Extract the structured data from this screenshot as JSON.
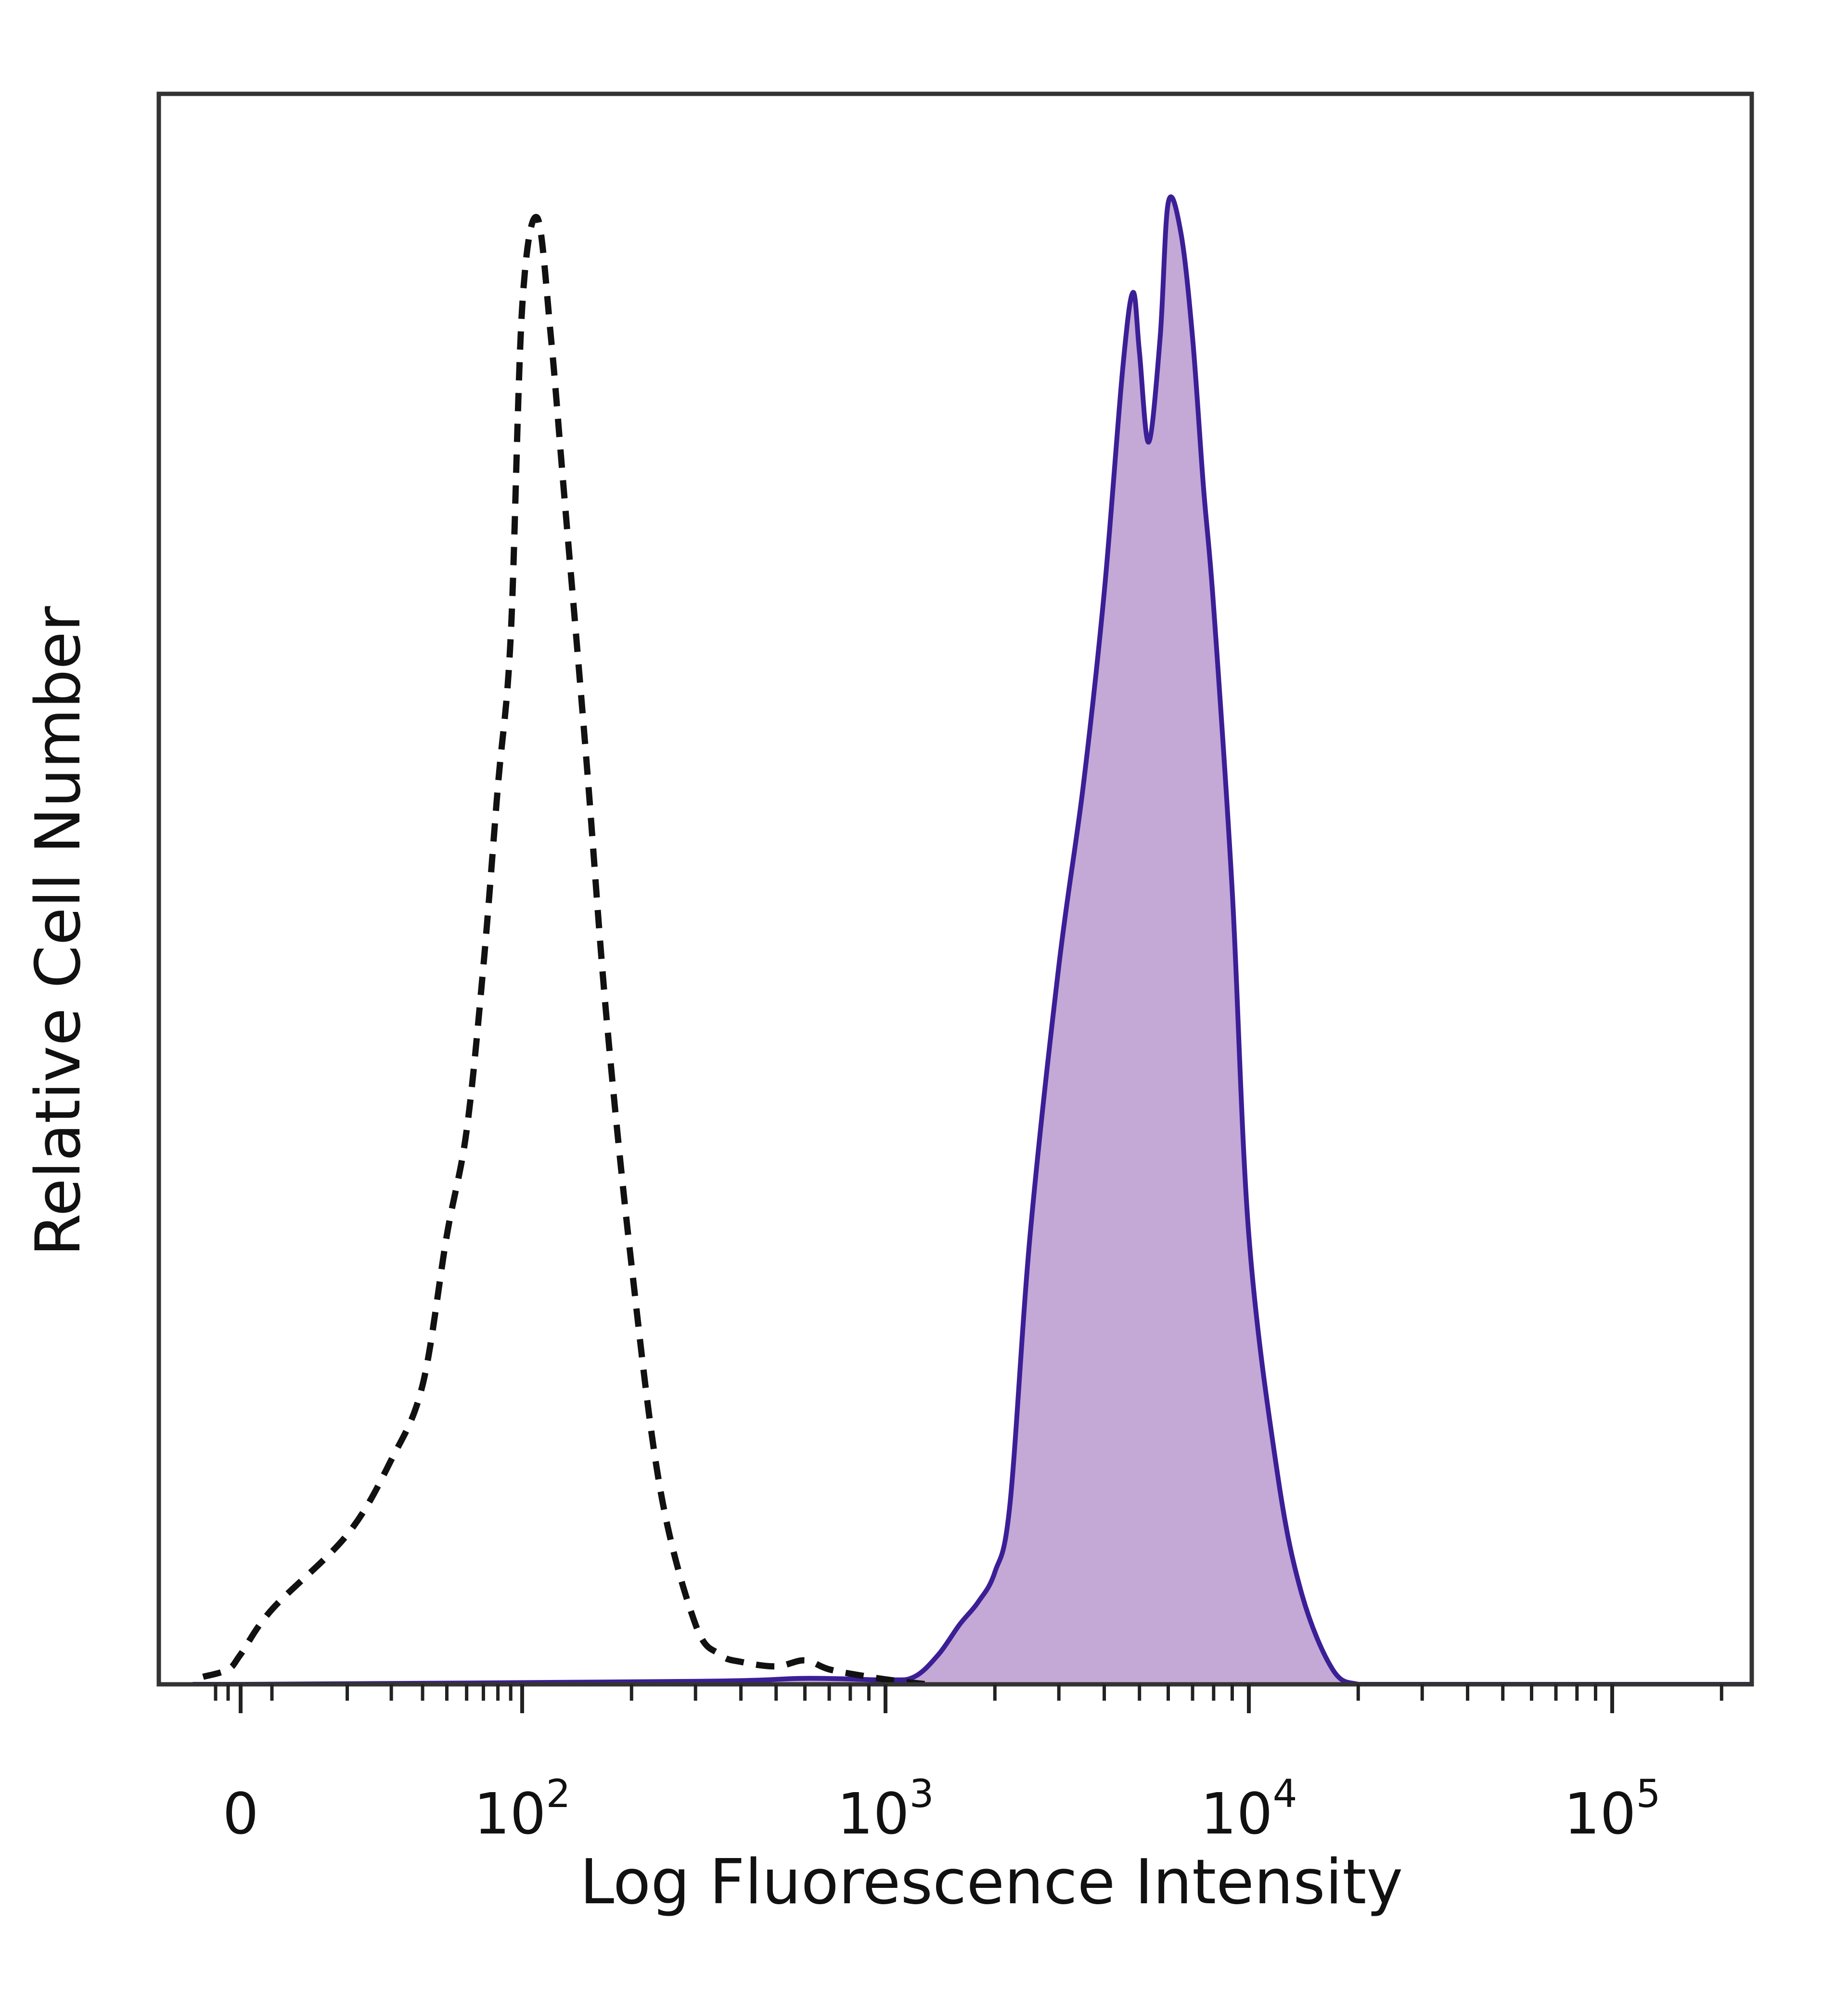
{
  "chart_data": {
    "type": "area",
    "title": "",
    "xlabel": "Log Fluorescence Intensity",
    "ylabel": "Relative Cell Number",
    "x_scale": "biexponential",
    "x_ticks": [
      {
        "value": 0,
        "label": "0",
        "base": "0",
        "exp": ""
      },
      {
        "value": 100,
        "label": "10^2",
        "base": "10",
        "exp": "2"
      },
      {
        "value": 1000,
        "label": "10^3",
        "base": "10",
        "exp": "3"
      },
      {
        "value": 10000,
        "label": "10^4",
        "base": "10",
        "exp": "4"
      },
      {
        "value": 100000,
        "label": "10^5",
        "base": "10",
        "exp": "5"
      }
    ],
    "xlim": [
      -30,
      250000
    ],
    "ylim": [
      0,
      100
    ],
    "grid": false,
    "legend": "none",
    "series": [
      {
        "style": "dashed",
        "fill": false,
        "color": "#111111",
        "x": [
          -30,
          -10,
          0,
          10,
          20,
          30,
          40,
          50,
          60,
          70,
          80,
          90,
          100,
          110,
          120,
          130,
          150,
          170,
          200,
          240,
          300,
          350,
          400,
          500,
          600,
          700,
          900,
          1100,
          1300
        ],
        "y": [
          0.5,
          1,
          2,
          5,
          10,
          15,
          20,
          30,
          37,
          48,
          60,
          70,
          92,
          98,
          90,
          80,
          62,
          45,
          28,
          13,
          4,
          2,
          1.5,
          1.2,
          1.6,
          1,
          0.5,
          0.2,
          0
        ]
      },
      {
        "style": "solid",
        "fill": true,
        "color": "#3b1f96",
        "fill_color": "#c4a8d6",
        "x": [
          -30,
          0,
          300,
          600,
          1000,
          1200,
          1400,
          1600,
          1800,
          2000,
          2200,
          2500,
          3000,
          3500,
          4000,
          4500,
          4800,
          5000,
          5300,
          5700,
          6000,
          6500,
          7000,
          7500,
          8000,
          9000,
          10000,
          12000,
          14000,
          17000,
          20000,
          25000,
          30000,
          40000,
          60000,
          100000,
          250000
        ],
        "y": [
          0,
          0,
          0.2,
          0.4,
          0.3,
          0.5,
          2,
          4,
          5.5,
          7.5,
          12,
          30,
          48,
          60,
          73,
          88,
          93,
          89,
          83,
          90,
          99,
          97,
          90,
          80,
          72,
          53,
          30,
          14,
          6,
          1,
          0,
          0,
          0,
          0,
          0,
          0,
          0
        ]
      }
    ]
  }
}
